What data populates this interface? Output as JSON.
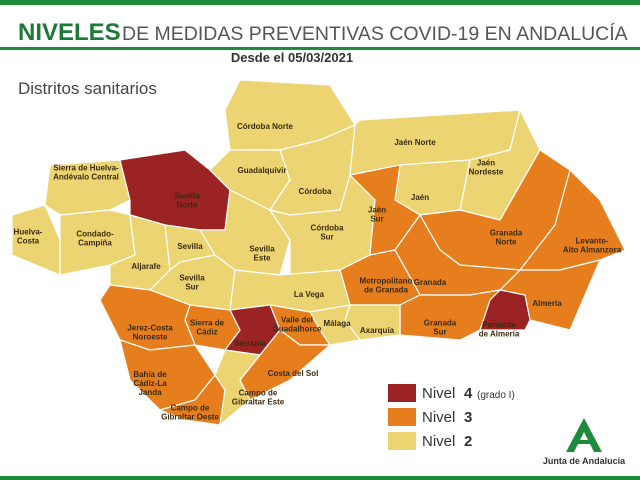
{
  "header": {
    "title_bold": "NIVELES",
    "title_rest": "DE MEDIDAS PREVENTIVAS COVID-19 EN ANDALUCÍA",
    "subtitle": "Desde el 05/03/2021"
  },
  "map_title": "Distritos sanitarios",
  "legend": [
    {
      "name": "Nivel",
      "level": 4,
      "note": "(grado I)",
      "color": "#9b2323"
    },
    {
      "name": "Nivel",
      "level": 3,
      "color": "#e67e1e"
    },
    {
      "name": "Nivel",
      "level": 2,
      "color": "#ecd472"
    }
  ],
  "districts": [
    {
      "lines": [
        "Huelva-",
        "Costa"
      ],
      "level": 2
    },
    {
      "lines": [
        "Sierra de Huelva-",
        "Andévalo Central"
      ],
      "level": 2
    },
    {
      "lines": [
        "Condado-",
        "Campiña"
      ],
      "level": 2
    },
    {
      "lines": [
        "Sevilla",
        "Norte"
      ],
      "level": 4
    },
    {
      "lines": [
        "Aljarafe"
      ],
      "level": 2
    },
    {
      "lines": [
        "Sevilla"
      ],
      "level": 2
    },
    {
      "lines": [
        "Sevilla",
        "Sur"
      ],
      "level": 2
    },
    {
      "lines": [
        "Sevilla",
        "Este"
      ],
      "level": 2
    },
    {
      "lines": [
        "Córdoba Norte"
      ],
      "level": 2
    },
    {
      "lines": [
        "Guadalquivir"
      ],
      "level": 2
    },
    {
      "lines": [
        "Córdoba"
      ],
      "level": 2
    },
    {
      "lines": [
        "Córdoba",
        "Sur"
      ],
      "level": 2
    },
    {
      "lines": [
        "Jaén Norte"
      ],
      "level": 2
    },
    {
      "lines": [
        "Jaén",
        "Nordeste"
      ],
      "level": 2
    },
    {
      "lines": [
        "Jaén"
      ],
      "level": 2
    },
    {
      "lines": [
        "Jaén",
        "Sur"
      ],
      "level": 3
    },
    {
      "lines": [
        "Granada",
        "Norte"
      ],
      "level": 3
    },
    {
      "lines": [
        "Levante-",
        "Alto Almanzora"
      ],
      "level": 3
    },
    {
      "lines": [
        "Almería"
      ],
      "level": 3
    },
    {
      "lines": [
        "Poniente",
        "de Almería"
      ],
      "level": 4
    },
    {
      "lines": [
        "Granada"
      ],
      "level": 3
    },
    {
      "lines": [
        "Metropolitano",
        "de Granada"
      ],
      "level": 3
    },
    {
      "lines": [
        "Granada",
        "Sur"
      ],
      "level": 3
    },
    {
      "lines": [
        "La Vega"
      ],
      "level": 2
    },
    {
      "lines": [
        "Axarquía"
      ],
      "level": 2
    },
    {
      "lines": [
        "Málaga"
      ],
      "level": 2
    },
    {
      "lines": [
        "Valle del",
        "Guadalhorce"
      ],
      "level": 3
    },
    {
      "lines": [
        "Serranía"
      ],
      "level": 4
    },
    {
      "lines": [
        "Costa del Sol"
      ],
      "level": 3
    },
    {
      "lines": [
        "Sierra de",
        "Cádiz"
      ],
      "level": 3
    },
    {
      "lines": [
        "Jerez-Costa",
        "Noroeste"
      ],
      "level": 3
    },
    {
      "lines": [
        "Bahía de",
        "Cádiz-La",
        "Janda"
      ],
      "level": 3
    },
    {
      "lines": [
        "Campo de",
        "Gibraltar Oeste"
      ],
      "level": 3
    },
    {
      "lines": [
        "Campo de",
        "Gibraltar Este"
      ],
      "level": 2
    }
  ],
  "logo": "Junta de Andalucía"
}
